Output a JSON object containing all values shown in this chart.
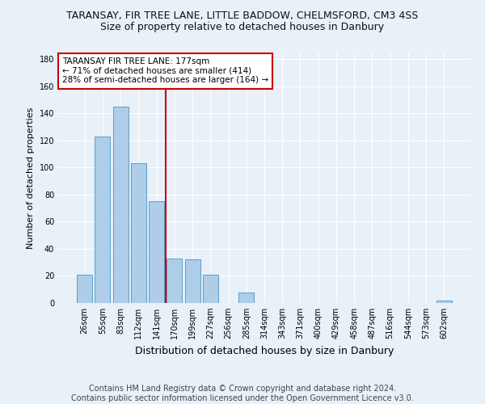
{
  "title": "TARANSAY, FIR TREE LANE, LITTLE BADDOW, CHELMSFORD, CM3 4SS",
  "subtitle": "Size of property relative to detached houses in Danbury",
  "xlabel": "Distribution of detached houses by size in Danbury",
  "ylabel": "Number of detached properties",
  "categories": [
    "26sqm",
    "55sqm",
    "83sqm",
    "112sqm",
    "141sqm",
    "170sqm",
    "199sqm",
    "227sqm",
    "256sqm",
    "285sqm",
    "314sqm",
    "343sqm",
    "371sqm",
    "400sqm",
    "429sqm",
    "458sqm",
    "487sqm",
    "516sqm",
    "544sqm",
    "573sqm",
    "602sqm"
  ],
  "bar_values": [
    21,
    123,
    145,
    103,
    75,
    33,
    32,
    21,
    0,
    8,
    0,
    0,
    0,
    0,
    0,
    0,
    0,
    0,
    0,
    0,
    2
  ],
  "bar_color": "#aecde8",
  "bar_edge_color": "#5a9ec9",
  "annotation_box_text": "TARANSAY FIR TREE LANE: 177sqm\n← 71% of detached houses are smaller (414)\n28% of semi-detached houses are larger (164) →",
  "annotation_box_color": "#ffffff",
  "annotation_box_edge_color": "#cc0000",
  "vline_color": "#cc0000",
  "vline_pos": 4.5,
  "ylim": [
    0,
    185
  ],
  "yticks": [
    0,
    20,
    40,
    60,
    80,
    100,
    120,
    140,
    160,
    180
  ],
  "footer": "Contains HM Land Registry data © Crown copyright and database right 2024.\nContains public sector information licensed under the Open Government Licence v3.0.",
  "bg_color": "#e8f0f8",
  "grid_color": "#ffffff",
  "title_fontsize": 9,
  "subtitle_fontsize": 9,
  "ylabel_fontsize": 8,
  "xlabel_fontsize": 9,
  "tick_fontsize": 7,
  "annotation_fontsize": 7.5,
  "footer_fontsize": 7
}
